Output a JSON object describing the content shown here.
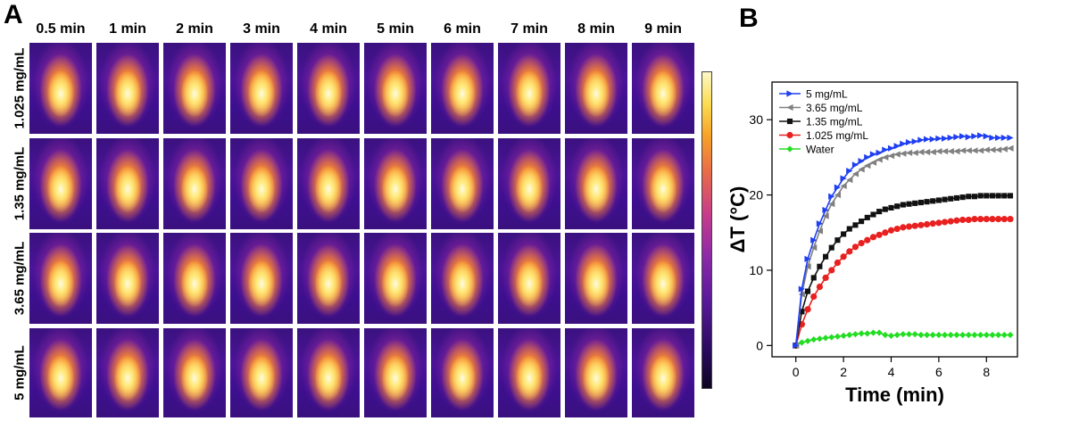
{
  "panels": {
    "a": "A",
    "b": "B"
  },
  "time_labels": [
    "0.5 min",
    "1 min",
    "2 min",
    "3 min",
    "4 min",
    "5 min",
    "6 min",
    "7 min",
    "8 min",
    "9 min"
  ],
  "concentration_labels": [
    "1.025 mg/mL",
    "1.35 mg/mL",
    "3.65 mg/mL",
    "5 mg/mL"
  ],
  "colorbar": {
    "colors": [
      "#0c0420",
      "#5a1a9a",
      "#c63c8a",
      "#f7a328",
      "#fdf7c8"
    ]
  },
  "chart_data": {
    "type": "line",
    "title": "",
    "xlabel": "Time (min)",
    "ylabel": "ΔT (°C)",
    "xlim": [
      -1,
      9.3
    ],
    "ylim": [
      -1.5,
      35
    ],
    "xticks": [
      0,
      2,
      4,
      6,
      8
    ],
    "yticks": [
      0,
      10,
      20,
      30
    ],
    "legend_position": "top-left",
    "x": [
      0,
      0.25,
      0.5,
      0.75,
      1,
      1.25,
      1.5,
      1.75,
      2,
      2.25,
      2.5,
      2.75,
      3,
      3.25,
      3.5,
      3.75,
      4,
      4.25,
      4.5,
      4.75,
      5,
      5.25,
      5.5,
      5.75,
      6,
      6.25,
      6.5,
      6.75,
      7,
      7.25,
      7.5,
      7.75,
      8,
      8.25,
      8.5,
      8.75,
      9
    ],
    "series": [
      {
        "name": "5 mg/mL",
        "color": "#1f3ff0",
        "marker": "triangle-right",
        "values": [
          0,
          7.5,
          11.5,
          14.0,
          16.2,
          18.0,
          19.8,
          21.0,
          22.2,
          23.2,
          24.0,
          24.5,
          25.0,
          25.4,
          25.6,
          26.0,
          26.2,
          26.5,
          26.8,
          27.0,
          27.1,
          27.3,
          27.4,
          27.4,
          27.5,
          27.5,
          27.6,
          27.7,
          27.8,
          27.7,
          27.8,
          27.9,
          27.8,
          27.6,
          27.6,
          27.6,
          27.6
        ]
      },
      {
        "name": "3.65 mg/mL",
        "color": "#808080",
        "marker": "triangle-left",
        "values": [
          0,
          6.8,
          10.5,
          13.0,
          15.2,
          17.2,
          18.8,
          20.0,
          21.2,
          22.0,
          22.8,
          23.4,
          23.9,
          24.3,
          24.7,
          25.0,
          25.2,
          25.4,
          25.5,
          25.6,
          25.6,
          25.7,
          25.7,
          25.7,
          25.8,
          25.8,
          25.8,
          25.8,
          25.9,
          25.9,
          25.9,
          25.9,
          26.0,
          26.0,
          26.0,
          26.1,
          26.2
        ]
      },
      {
        "name": "1.35 mg/mL",
        "color": "#111111",
        "marker": "square",
        "values": [
          0,
          4.5,
          7.2,
          9.0,
          10.5,
          11.8,
          13.0,
          14.0,
          14.8,
          15.5,
          16.0,
          16.5,
          17.0,
          17.4,
          17.8,
          18.1,
          18.3,
          18.5,
          18.7,
          18.8,
          18.9,
          19.0,
          19.1,
          19.2,
          19.3,
          19.4,
          19.5,
          19.6,
          19.7,
          19.8,
          19.8,
          19.9,
          19.9,
          19.9,
          19.9,
          19.9,
          19.9
        ]
      },
      {
        "name": "1.025 mg/mL",
        "color": "#e82020",
        "marker": "circle",
        "values": [
          0,
          2.8,
          4.8,
          6.5,
          7.8,
          9.0,
          10.0,
          11.0,
          11.8,
          12.5,
          13.1,
          13.6,
          14.0,
          14.4,
          14.7,
          15.0,
          15.3,
          15.5,
          15.7,
          15.8,
          15.9,
          16.0,
          16.1,
          16.2,
          16.3,
          16.4,
          16.5,
          16.6,
          16.7,
          16.7,
          16.8,
          16.8,
          16.8,
          16.8,
          16.8,
          16.8,
          16.8
        ]
      },
      {
        "name": "Water",
        "color": "#22dd22",
        "marker": "diamond",
        "values": [
          0,
          0.4,
          0.6,
          0.8,
          0.9,
          1.0,
          1.1,
          1.2,
          1.3,
          1.4,
          1.5,
          1.6,
          1.6,
          1.7,
          1.7,
          1.4,
          1.3,
          1.4,
          1.5,
          1.5,
          1.5,
          1.4,
          1.4,
          1.4,
          1.4,
          1.4,
          1.4,
          1.4,
          1.4,
          1.4,
          1.4,
          1.4,
          1.4,
          1.4,
          1.4,
          1.4,
          1.4
        ]
      }
    ]
  }
}
